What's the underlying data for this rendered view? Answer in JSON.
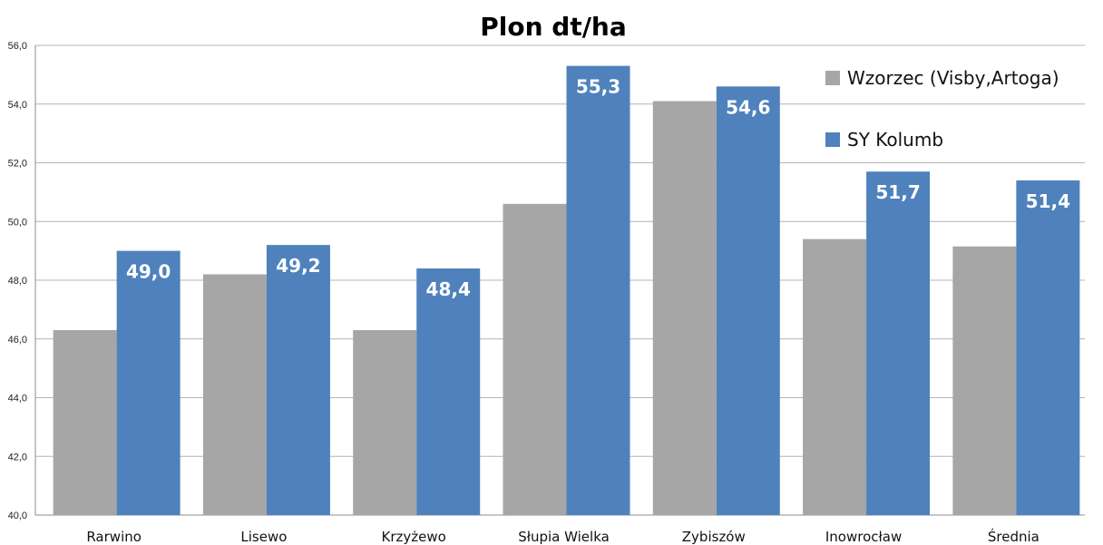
{
  "chart_data": {
    "type": "bar",
    "title": "Plon dt/ha",
    "xlabel": "",
    "ylabel": "",
    "ylim": [
      40,
      56
    ],
    "y_ticks": [
      "40,0",
      "42,0",
      "44,0",
      "46,0",
      "48,0",
      "50,0",
      "52,0",
      "54,0",
      "56,0"
    ],
    "grid": true,
    "legend_position": "top-right",
    "categories": [
      "Rarwino",
      "Lisewo",
      "Krzyżewo",
      "Słupia Wielka",
      "Zybiszów",
      "Inowrocław",
      "Średnia"
    ],
    "series": [
      {
        "name": "Wzorzec (Visby,Artoga)",
        "color": "#a6a6a6",
        "values": [
          46.3,
          48.2,
          46.3,
          50.6,
          54.1,
          49.4,
          49.15
        ],
        "data_labels": []
      },
      {
        "name": "SY Kolumb",
        "color": "#4f81bd",
        "values": [
          49.0,
          49.2,
          48.4,
          55.3,
          54.6,
          51.7,
          51.4
        ],
        "data_labels": [
          "49,0",
          "49,2",
          "48,4",
          "55,3",
          "54,6",
          "51,7",
          "51,4"
        ]
      }
    ]
  }
}
